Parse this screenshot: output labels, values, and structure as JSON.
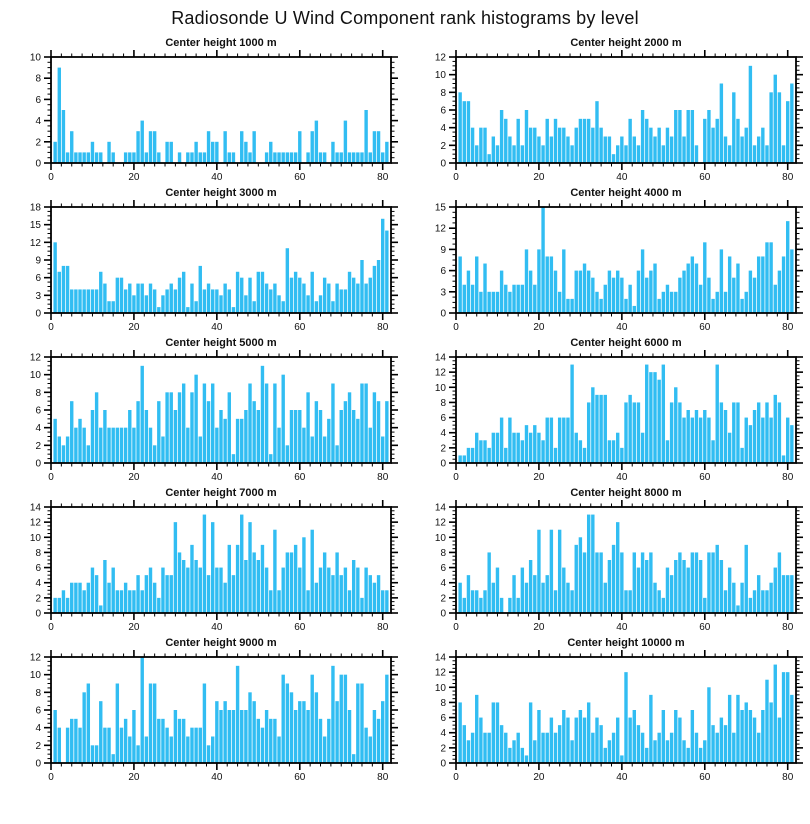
{
  "page": {
    "title": "Radiosonde U Wind Component rank histograms by level"
  },
  "colors": {
    "bar": "#31BDF2",
    "axis": "#000000",
    "background": "#FFFFFF"
  },
  "chart_data": [
    {
      "type": "bar",
      "title": "Center height 1000 m",
      "xlabel": "",
      "ylabel": "",
      "xlim": [
        0,
        82
      ],
      "ylim": [
        0,
        10
      ],
      "ytick_step": 2,
      "xticks": [
        0,
        20,
        40,
        60,
        80
      ],
      "n_bins": 81,
      "grid": false,
      "values": [
        2,
        9,
        5,
        1,
        3,
        1,
        1,
        1,
        1,
        2,
        1,
        1,
        0,
        2,
        1,
        0,
        0,
        1,
        1,
        1,
        3,
        4,
        1,
        3,
        3,
        1,
        0,
        2,
        2,
        0,
        1,
        0,
        1,
        1,
        2,
        1,
        1,
        3,
        2,
        2,
        0,
        3,
        1,
        1,
        0,
        3,
        2,
        1,
        3,
        0,
        0,
        1,
        2,
        1,
        1,
        1,
        1,
        1,
        1,
        3,
        0,
        1,
        3,
        4,
        1,
        1,
        0,
        2,
        1,
        1,
        4,
        1,
        1,
        1,
        1,
        5,
        1,
        3,
        3,
        1,
        2
      ]
    },
    {
      "type": "bar",
      "title": "Center height 2000 m",
      "xlabel": "",
      "ylabel": "",
      "xlim": [
        0,
        82
      ],
      "ylim": [
        0,
        12
      ],
      "ytick_step": 2,
      "xticks": [
        0,
        20,
        40,
        60,
        80
      ],
      "n_bins": 81,
      "grid": false,
      "values": [
        8,
        7,
        7,
        4,
        2,
        4,
        4,
        1,
        3,
        2,
        6,
        5,
        3,
        2,
        5,
        2,
        6,
        4,
        4,
        3,
        2,
        5,
        3,
        5,
        4,
        4,
        3,
        2,
        4,
        5,
        5,
        5,
        4,
        7,
        4,
        3,
        3,
        1,
        2,
        3,
        2,
        5,
        3,
        2,
        6,
        5,
        4,
        3,
        4,
        2,
        4,
        3,
        6,
        6,
        3,
        6,
        6,
        2,
        0,
        5,
        6,
        4,
        5,
        9,
        3,
        2,
        8,
        5,
        3,
        4,
        11,
        2,
        3,
        4,
        2,
        8,
        10,
        8,
        2,
        7,
        9
      ]
    },
    {
      "type": "bar",
      "title": "Center height 3000 m",
      "xlabel": "",
      "ylabel": "",
      "xlim": [
        0,
        82
      ],
      "ylim": [
        0,
        18
      ],
      "ytick_step": 3,
      "xticks": [
        0,
        20,
        40,
        60,
        80
      ],
      "n_bins": 81,
      "grid": false,
      "values": [
        12,
        7,
        8,
        8,
        4,
        4,
        4,
        4,
        4,
        4,
        4,
        7,
        5,
        2,
        2,
        6,
        6,
        4,
        5,
        3,
        5,
        5,
        3,
        5,
        4,
        1,
        3,
        4,
        5,
        4,
        6,
        7,
        1,
        5,
        2,
        8,
        4,
        5,
        4,
        4,
        3,
        5,
        4,
        1,
        7,
        6,
        3,
        6,
        2,
        7,
        7,
        5,
        4,
        5,
        3,
        2,
        11,
        6,
        7,
        6,
        5,
        3,
        7,
        2,
        3,
        6,
        5,
        2,
        5,
        4,
        4,
        7,
        6,
        5,
        9,
        5,
        6,
        8,
        9,
        16,
        14
      ]
    },
    {
      "type": "bar",
      "title": "Center height 4000 m",
      "xlabel": "",
      "ylabel": "",
      "xlim": [
        0,
        82
      ],
      "ylim": [
        0,
        15
      ],
      "ytick_step": 3,
      "xticks": [
        0,
        20,
        40,
        60,
        80
      ],
      "n_bins": 81,
      "grid": false,
      "values": [
        8,
        4,
        6,
        4,
        8,
        3,
        7,
        3,
        3,
        3,
        6,
        4,
        3,
        4,
        4,
        4,
        9,
        6,
        4,
        9,
        15,
        8,
        8,
        6,
        3,
        9,
        2,
        2,
        6,
        6,
        7,
        6,
        5,
        3,
        2,
        4,
        6,
        5,
        6,
        5,
        2,
        4,
        1,
        6,
        9,
        5,
        6,
        7,
        2,
        3,
        4,
        3,
        3,
        5,
        6,
        7,
        8,
        7,
        4,
        10,
        5,
        2,
        3,
        9,
        3,
        8,
        5,
        7,
        2,
        3,
        6,
        5,
        8,
        8,
        10,
        10,
        4,
        6,
        8,
        13,
        9
      ]
    },
    {
      "type": "bar",
      "title": "Center height 5000 m",
      "xlabel": "",
      "ylabel": "",
      "xlim": [
        0,
        82
      ],
      "ylim": [
        0,
        12
      ],
      "ytick_step": 2,
      "xticks": [
        0,
        20,
        40,
        60,
        80
      ],
      "n_bins": 81,
      "grid": false,
      "values": [
        5,
        3,
        2,
        3,
        7,
        4,
        5,
        4,
        2,
        6,
        8,
        4,
        6,
        4,
        4,
        4,
        4,
        4,
        6,
        4,
        7,
        11,
        6,
        4,
        2,
        7,
        3,
        8,
        8,
        6,
        8,
        9,
        4,
        8,
        10,
        3,
        9,
        7,
        9,
        4,
        6,
        5,
        8,
        1,
        5,
        5,
        6,
        9,
        7,
        6,
        11,
        9,
        1,
        9,
        4,
        10,
        2,
        6,
        6,
        6,
        4,
        8,
        3,
        7,
        6,
        3,
        5,
        9,
        2,
        6,
        7,
        8,
        6,
        5,
        9,
        9,
        4,
        8,
        7,
        3,
        7
      ]
    },
    {
      "type": "bar",
      "title": "Center height 6000 m",
      "xlabel": "",
      "ylabel": "",
      "xlim": [
        0,
        82
      ],
      "ylim": [
        0,
        14
      ],
      "ytick_step": 2,
      "xticks": [
        0,
        20,
        40,
        60,
        80
      ],
      "n_bins": 81,
      "grid": false,
      "values": [
        1,
        1,
        2,
        2,
        4,
        3,
        3,
        2,
        4,
        4,
        6,
        2,
        6,
        4,
        4,
        3,
        5,
        4,
        5,
        4,
        3,
        6,
        6,
        2,
        6,
        6,
        6,
        13,
        4,
        3,
        2,
        8,
        10,
        9,
        9,
        9,
        3,
        3,
        4,
        2,
        8,
        9,
        8,
        8,
        4,
        13,
        12,
        12,
        11,
        13,
        3,
        8,
        10,
        8,
        6,
        7,
        6,
        7,
        6,
        7,
        6,
        3,
        13,
        8,
        7,
        4,
        8,
        8,
        2,
        6,
        5,
        7,
        8,
        6,
        8,
        6,
        9,
        8,
        1,
        6,
        5
      ]
    },
    {
      "type": "bar",
      "title": "Center height 7000 m",
      "xlabel": "",
      "ylabel": "",
      "xlim": [
        0,
        82
      ],
      "ylim": [
        0,
        14
      ],
      "ytick_step": 2,
      "xticks": [
        0,
        20,
        40,
        60,
        80
      ],
      "n_bins": 81,
      "grid": false,
      "values": [
        2,
        2,
        3,
        2,
        4,
        4,
        4,
        3,
        4,
        6,
        5,
        1,
        7,
        4,
        6,
        3,
        3,
        4,
        3,
        3,
        5,
        3,
        5,
        6,
        4,
        2,
        6,
        5,
        5,
        12,
        8,
        7,
        6,
        9,
        7,
        6,
        13,
        5,
        12,
        6,
        6,
        4,
        9,
        5,
        9,
        13,
        7,
        12,
        8,
        7,
        9,
        6,
        3,
        11,
        3,
        6,
        8,
        8,
        9,
        6,
        10,
        3,
        11,
        4,
        6,
        8,
        6,
        5,
        8,
        5,
        6,
        3,
        7,
        6,
        2,
        6,
        5,
        4,
        5,
        3,
        3
      ]
    },
    {
      "type": "bar",
      "title": "Center height 8000 m",
      "xlabel": "",
      "ylabel": "",
      "xlim": [
        0,
        82
      ],
      "ylim": [
        0,
        14
      ],
      "ytick_step": 2,
      "xticks": [
        0,
        20,
        40,
        60,
        80
      ],
      "n_bins": 81,
      "grid": false,
      "values": [
        4,
        2,
        5,
        3,
        3,
        2,
        3,
        8,
        4,
        6,
        2,
        0,
        2,
        5,
        2,
        6,
        4,
        7,
        5,
        11,
        4,
        5,
        11,
        3,
        11,
        6,
        4,
        3,
        9,
        10,
        8,
        13,
        13,
        8,
        8,
        4,
        7,
        9,
        12,
        8,
        3,
        3,
        8,
        6,
        8,
        7,
        8,
        4,
        3,
        2,
        6,
        5,
        7,
        8,
        7,
        6,
        8,
        8,
        7,
        2,
        8,
        8,
        9,
        7,
        3,
        6,
        4,
        1,
        4,
        9,
        2,
        3,
        5,
        3,
        3,
        4,
        6,
        8,
        5,
        5,
        5
      ]
    },
    {
      "type": "bar",
      "title": "Center height 9000 m",
      "xlabel": "",
      "ylabel": "",
      "xlim": [
        0,
        82
      ],
      "ylim": [
        0,
        12
      ],
      "ytick_step": 2,
      "xticks": [
        0,
        20,
        40,
        60,
        80
      ],
      "n_bins": 81,
      "grid": false,
      "values": [
        6,
        4,
        0,
        4,
        5,
        5,
        4,
        8,
        9,
        2,
        2,
        7,
        4,
        4,
        1,
        9,
        4,
        5,
        3,
        6,
        2,
        12,
        3,
        9,
        9,
        5,
        5,
        4,
        3,
        6,
        5,
        5,
        3,
        4,
        4,
        4,
        9,
        2,
        3,
        7,
        6,
        7,
        6,
        6,
        11,
        6,
        6,
        8,
        7,
        5,
        4,
        6,
        5,
        5,
        3,
        10,
        9,
        8,
        6,
        7,
        7,
        6,
        10,
        8,
        5,
        3,
        5,
        11,
        7,
        10,
        10,
        6,
        1,
        9,
        9,
        4,
        3,
        6,
        5,
        7,
        10
      ]
    },
    {
      "type": "bar",
      "title": "Center height 10000 m",
      "xlabel": "",
      "ylabel": "",
      "xlim": [
        0,
        82
      ],
      "ylim": [
        0,
        14
      ],
      "ytick_step": 2,
      "xticks": [
        0,
        20,
        40,
        60,
        80
      ],
      "n_bins": 81,
      "grid": false,
      "values": [
        8,
        5,
        3,
        4,
        9,
        6,
        4,
        4,
        8,
        8,
        5,
        4,
        2,
        3,
        4,
        2,
        1,
        8,
        3,
        7,
        4,
        4,
        6,
        4,
        5,
        7,
        6,
        3,
        6,
        7,
        6,
        8,
        4,
        6,
        5,
        2,
        3,
        4,
        6,
        1,
        12,
        6,
        7,
        5,
        4,
        2,
        9,
        3,
        4,
        7,
        3,
        4,
        7,
        6,
        3,
        2,
        7,
        4,
        2,
        3,
        10,
        5,
        4,
        6,
        5,
        9,
        4,
        9,
        7,
        8,
        7,
        6,
        4,
        7,
        11,
        8,
        13,
        6,
        12,
        12,
        9
      ]
    }
  ]
}
